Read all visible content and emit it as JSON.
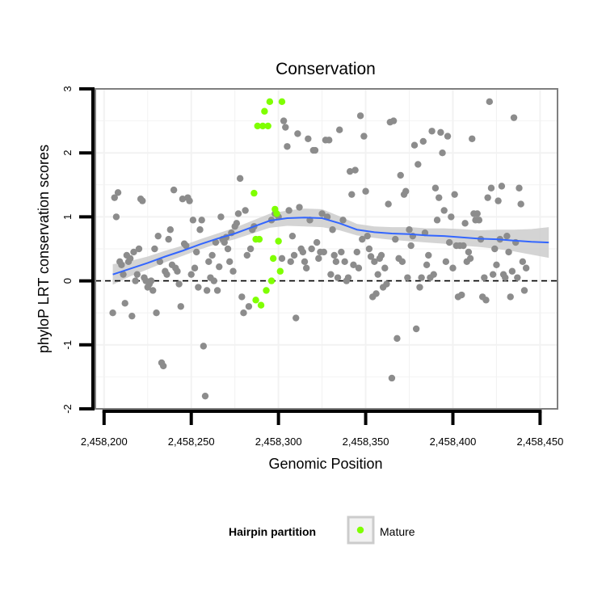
{
  "chart_data": {
    "type": "scatter",
    "title": "Conservation",
    "xlabel": "Genomic Position",
    "ylabel": "phyloP LRT conservation scores",
    "xlim": [
      2458195,
      2458460
    ],
    "ylim": [
      -2,
      3
    ],
    "x_ticks": [
      2458200,
      2458250,
      2458300,
      2458350,
      2458400,
      2458450
    ],
    "x_tick_labels": [
      "2,458,200",
      "2,458,250",
      "2,458,300",
      "2,458,350",
      "2,458,400",
      "2,458,450"
    ],
    "y_ticks": [
      -2,
      -1,
      0,
      1,
      2,
      3
    ],
    "y_tick_labels": [
      "-2",
      "-1",
      "0",
      "1",
      "2",
      "3"
    ],
    "grid": true,
    "reference_line": {
      "y": 0,
      "style": "dashed",
      "color": "#000000"
    },
    "legend": {
      "title": "Hairpin partition",
      "position": "bottom",
      "entries": [
        {
          "label": "Mature",
          "color": "#7fff00"
        }
      ]
    },
    "colors": {
      "other_points": "#8c8c8c",
      "mature_points": "#7fff00",
      "smooth_line": "#3366ff",
      "confidence_band": "#cccccc",
      "panel_border": "#7f7f7f",
      "grid": "#f2f2f2"
    },
    "series": [
      {
        "color": "#8c8c8c",
        "points": [
          [
            2458205,
            -0.5
          ],
          [
            2458206,
            1.3
          ],
          [
            2458207,
            1.0
          ],
          [
            2458208,
            1.38
          ],
          [
            2458209,
            0.3
          ],
          [
            2458210,
            0.25
          ],
          [
            2458211,
            0.1
          ],
          [
            2458212,
            -0.35
          ],
          [
            2458213,
            0.4
          ],
          [
            2458214,
            0.3
          ],
          [
            2458215,
            0.35
          ],
          [
            2458216,
            -0.55
          ],
          [
            2458217,
            0.45
          ],
          [
            2458218,
            0.0
          ],
          [
            2458219,
            0.1
          ],
          [
            2458220,
            0.5
          ],
          [
            2458221,
            1.28
          ],
          [
            2458222,
            1.25
          ],
          [
            2458223,
            0.05
          ],
          [
            2458224,
            0.0
          ],
          [
            2458225,
            -0.1
          ],
          [
            2458226,
            -0.05
          ],
          [
            2458227,
            0.0
          ],
          [
            2458228,
            -0.15
          ],
          [
            2458229,
            0.5
          ],
          [
            2458230,
            -0.5
          ],
          [
            2458231,
            0.7
          ],
          [
            2458232,
            0.3
          ],
          [
            2458233,
            -1.28
          ],
          [
            2458234,
            -1.33
          ],
          [
            2458235,
            0.15
          ],
          [
            2458236,
            0.1
          ],
          [
            2458237,
            0.65
          ],
          [
            2458238,
            0.8
          ],
          [
            2458239,
            0.25
          ],
          [
            2458240,
            1.42
          ],
          [
            2458241,
            0.2
          ],
          [
            2458242,
            0.15
          ],
          [
            2458243,
            -0.05
          ],
          [
            2458244,
            -0.4
          ],
          [
            2458245,
            1.28
          ],
          [
            2458246,
            0.58
          ],
          [
            2458247,
            0.55
          ],
          [
            2458248,
            1.3
          ],
          [
            2458249,
            1.25
          ],
          [
            2458250,
            0.1
          ],
          [
            2458251,
            0.95
          ],
          [
            2458252,
            0.2
          ],
          [
            2458253,
            0.45
          ],
          [
            2458254,
            -0.1
          ],
          [
            2458255,
            0.8
          ],
          [
            2458256,
            0.95
          ],
          [
            2458257,
            -1.02
          ],
          [
            2458258,
            -1.8
          ],
          [
            2458259,
            -0.15
          ],
          [
            2458260,
            0.3
          ],
          [
            2458261,
            0.05
          ],
          [
            2458262,
            0.4
          ],
          [
            2458263,
            0.0
          ],
          [
            2458264,
            0.6
          ],
          [
            2458265,
            -0.15
          ],
          [
            2458266,
            0.22
          ],
          [
            2458267,
            1.0
          ],
          [
            2458268,
            0.65
          ],
          [
            2458269,
            0.6
          ],
          [
            2458270,
            0.68
          ],
          [
            2458271,
            0.5
          ],
          [
            2458272,
            0.3
          ],
          [
            2458273,
            0.75
          ],
          [
            2458274,
            0.15
          ],
          [
            2458275,
            0.85
          ],
          [
            2458276,
            0.9
          ],
          [
            2458277,
            1.05
          ],
          [
            2458278,
            1.6
          ],
          [
            2458279,
            -0.25
          ],
          [
            2458280,
            -0.5
          ],
          [
            2458281,
            1.1
          ],
          [
            2458282,
            0.4
          ],
          [
            2458283,
            -0.4
          ],
          [
            2458284,
            0.5
          ],
          [
            2458285,
            0.8
          ],
          [
            2458286,
            0.85
          ],
          [
            2458296,
            0.95
          ],
          [
            2458298,
            1.05
          ],
          [
            2458300,
            1.0
          ],
          [
            2458302,
            0.35
          ],
          [
            2458303,
            2.5
          ],
          [
            2458304,
            2.4
          ],
          [
            2458305,
            2.1
          ],
          [
            2458306,
            1.1
          ],
          [
            2458307,
            0.3
          ],
          [
            2458308,
            0.7
          ],
          [
            2458309,
            0.4
          ],
          [
            2458310,
            -0.58
          ],
          [
            2458311,
            2.3
          ],
          [
            2458312,
            1.15
          ],
          [
            2458313,
            0.5
          ],
          [
            2458314,
            0.45
          ],
          [
            2458315,
            0.3
          ],
          [
            2458316,
            0.2
          ],
          [
            2458317,
            2.22
          ],
          [
            2458318,
            0.95
          ],
          [
            2458319,
            0.5
          ],
          [
            2458320,
            2.04
          ],
          [
            2458321,
            2.04
          ],
          [
            2458322,
            0.6
          ],
          [
            2458323,
            0.35
          ],
          [
            2458324,
            0.45
          ],
          [
            2458325,
            1.05
          ],
          [
            2458326,
            0.45
          ],
          [
            2458327,
            2.2
          ],
          [
            2458328,
            1.0
          ],
          [
            2458329,
            2.2
          ],
          [
            2458330,
            0.1
          ],
          [
            2458331,
            0.8
          ],
          [
            2458332,
            0.4
          ],
          [
            2458333,
            0.3
          ],
          [
            2458334,
            0.05
          ],
          [
            2458335,
            2.36
          ],
          [
            2458336,
            0.45
          ],
          [
            2458337,
            0.95
          ],
          [
            2458338,
            0.3
          ],
          [
            2458339,
            0.0
          ],
          [
            2458340,
            0.05
          ],
          [
            2458341,
            1.71
          ],
          [
            2458342,
            1.35
          ],
          [
            2458343,
            0.25
          ],
          [
            2458344,
            1.73
          ],
          [
            2458345,
            0.45
          ],
          [
            2458346,
            0.2
          ],
          [
            2458347,
            2.58
          ],
          [
            2458348,
            0.65
          ],
          [
            2458349,
            2.26
          ],
          [
            2458350,
            1.4
          ],
          [
            2458351,
            0.7
          ],
          [
            2458352,
            0.5
          ],
          [
            2458353,
            0.38
          ],
          [
            2458354,
            -0.25
          ],
          [
            2458355,
            0.3
          ],
          [
            2458356,
            -0.2
          ],
          [
            2458357,
            0.1
          ],
          [
            2458358,
            0.35
          ],
          [
            2458359,
            0.4
          ],
          [
            2458360,
            -0.1
          ],
          [
            2458361,
            0.2
          ],
          [
            2458362,
            -0.05
          ],
          [
            2458363,
            1.2
          ],
          [
            2458364,
            2.48
          ],
          [
            2458365,
            -1.52
          ],
          [
            2458366,
            2.5
          ],
          [
            2458367,
            0.65
          ],
          [
            2458368,
            -0.9
          ],
          [
            2458369,
            0.35
          ],
          [
            2458370,
            1.65
          ],
          [
            2458371,
            0.3
          ],
          [
            2458372,
            1.35
          ],
          [
            2458373,
            1.4
          ],
          [
            2458374,
            0.05
          ],
          [
            2458375,
            0.8
          ],
          [
            2458376,
            0.55
          ],
          [
            2458377,
            0.7
          ],
          [
            2458378,
            2.12
          ],
          [
            2458379,
            -0.75
          ],
          [
            2458380,
            1.82
          ],
          [
            2458381,
            -0.1
          ],
          [
            2458382,
            0.05
          ],
          [
            2458383,
            2.18
          ],
          [
            2458384,
            0.75
          ],
          [
            2458385,
            0.25
          ],
          [
            2458386,
            0.4
          ],
          [
            2458387,
            0.05
          ],
          [
            2458388,
            2.34
          ],
          [
            2458389,
            0.1
          ],
          [
            2458390,
            1.45
          ],
          [
            2458391,
            0.95
          ],
          [
            2458392,
            1.3
          ],
          [
            2458393,
            2.32
          ],
          [
            2458394,
            2.0
          ],
          [
            2458395,
            1.1
          ],
          [
            2458396,
            0.3
          ],
          [
            2458397,
            2.26
          ],
          [
            2458398,
            0.6
          ],
          [
            2458399,
            1.0
          ],
          [
            2458400,
            0.2
          ],
          [
            2458401,
            1.35
          ],
          [
            2458402,
            0.55
          ],
          [
            2458403,
            -0.25
          ],
          [
            2458404,
            0.55
          ],
          [
            2458405,
            -0.22
          ],
          [
            2458406,
            0.55
          ],
          [
            2458407,
            0.9
          ],
          [
            2458408,
            0.3
          ],
          [
            2458409,
            0.45
          ],
          [
            2458410,
            0.35
          ],
          [
            2458411,
            2.22
          ],
          [
            2458412,
            1.05
          ],
          [
            2458413,
            0.95
          ],
          [
            2458414,
            1.05
          ],
          [
            2458415,
            0.95
          ],
          [
            2458416,
            0.65
          ],
          [
            2458417,
            -0.25
          ],
          [
            2458418,
            0.05
          ],
          [
            2458419,
            -0.3
          ],
          [
            2458420,
            1.3
          ],
          [
            2458421,
            2.8
          ],
          [
            2458422,
            1.45
          ],
          [
            2458423,
            0.1
          ],
          [
            2458424,
            0.5
          ],
          [
            2458425,
            0.25
          ],
          [
            2458426,
            1.25
          ],
          [
            2458427,
            0.65
          ],
          [
            2458428,
            1.48
          ],
          [
            2458429,
            0.1
          ],
          [
            2458430,
            0.05
          ],
          [
            2458431,
            0.7
          ],
          [
            2458432,
            0.45
          ],
          [
            2458433,
            -0.25
          ],
          [
            2458434,
            0.15
          ],
          [
            2458435,
            2.55
          ],
          [
            2458436,
            0.6
          ],
          [
            2458437,
            0.05
          ],
          [
            2458438,
            1.45
          ],
          [
            2458439,
            1.2
          ],
          [
            2458440,
            0.3
          ],
          [
            2458441,
            -0.15
          ],
          [
            2458442,
            0.2
          ]
        ]
      },
      {
        "name": "Mature",
        "color": "#7fff00",
        "points": [
          [
            2458286,
            1.37
          ],
          [
            2458287,
            0.65
          ],
          [
            2458287,
            -0.3
          ],
          [
            2458288,
            2.42
          ],
          [
            2458289,
            0.65
          ],
          [
            2458290,
            -0.38
          ],
          [
            2458291,
            2.42
          ],
          [
            2458292,
            2.65
          ],
          [
            2458293,
            -0.15
          ],
          [
            2458294,
            2.42
          ],
          [
            2458295,
            2.8
          ],
          [
            2458296,
            0.0
          ],
          [
            2458297,
            0.35
          ],
          [
            2458298,
            1.12
          ],
          [
            2458299,
            1.05
          ],
          [
            2458300,
            0.62
          ],
          [
            2458301,
            0.15
          ],
          [
            2458302,
            2.8
          ]
        ]
      }
    ],
    "smooth": {
      "method": "loess",
      "color": "#3366ff",
      "x": [
        2458205,
        2458215,
        2458225,
        2458235,
        2458245,
        2458255,
        2458265,
        2458275,
        2458285,
        2458295,
        2458305,
        2458315,
        2458325,
        2458335,
        2458345,
        2458355,
        2458365,
        2458375,
        2458385,
        2458395,
        2458405,
        2458415,
        2458425,
        2458435,
        2458445,
        2458455
      ],
      "y": [
        0.1,
        0.19,
        0.28,
        0.38,
        0.47,
        0.57,
        0.66,
        0.74,
        0.84,
        0.94,
        0.98,
        0.99,
        0.98,
        0.9,
        0.8,
        0.76,
        0.74,
        0.73,
        0.71,
        0.7,
        0.68,
        0.66,
        0.65,
        0.63,
        0.61,
        0.6
      ],
      "lower": [
        -0.06,
        0.07,
        0.18,
        0.29,
        0.39,
        0.49,
        0.58,
        0.65,
        0.74,
        0.83,
        0.86,
        0.85,
        0.84,
        0.79,
        0.71,
        0.67,
        0.64,
        0.62,
        0.6,
        0.58,
        0.55,
        0.53,
        0.5,
        0.46,
        0.41,
        0.36
      ],
      "upper": [
        0.26,
        0.31,
        0.38,
        0.47,
        0.55,
        0.65,
        0.74,
        0.83,
        0.94,
        1.05,
        1.1,
        1.13,
        1.12,
        1.01,
        0.89,
        0.85,
        0.84,
        0.84,
        0.82,
        0.82,
        0.81,
        0.79,
        0.8,
        0.8,
        0.81,
        0.84
      ]
    }
  }
}
